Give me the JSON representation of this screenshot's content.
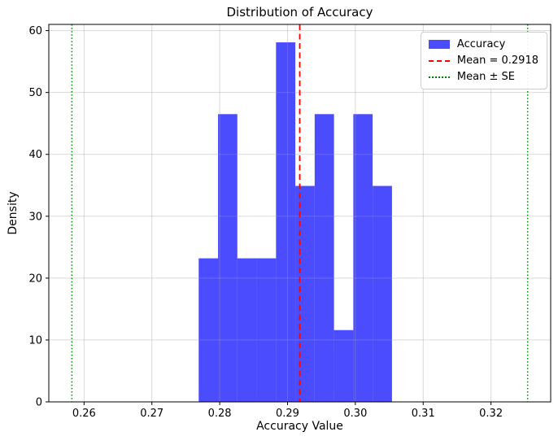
{
  "chart_data": {
    "type": "bar",
    "subtype": "histogram-density",
    "title": "Distribution of Accuracy",
    "xlabel": "Accuracy Value",
    "ylabel": "Density",
    "xlim": [
      0.2548,
      0.3288
    ],
    "ylim": [
      0,
      61
    ],
    "grid": true,
    "xticks": [
      {
        "value": 0.26,
        "label": "0.26"
      },
      {
        "value": 0.27,
        "label": "0.27"
      },
      {
        "value": 0.28,
        "label": "0.28"
      },
      {
        "value": 0.29,
        "label": "0.29"
      },
      {
        "value": 0.3,
        "label": "0.30"
      },
      {
        "value": 0.31,
        "label": "0.31"
      },
      {
        "value": 0.32,
        "label": "0.32"
      }
    ],
    "yticks": [
      {
        "value": 0,
        "label": "0"
      },
      {
        "value": 10,
        "label": "10"
      },
      {
        "value": 20,
        "label": "20"
      },
      {
        "value": 30,
        "label": "30"
      },
      {
        "value": 40,
        "label": "40"
      },
      {
        "value": 50,
        "label": "50"
      },
      {
        "value": 60,
        "label": "60"
      }
    ],
    "histogram": {
      "series_name": "Accuracy",
      "bin_edges": [
        0.2769,
        0.27975,
        0.2826,
        0.28545,
        0.2883,
        0.29115,
        0.294,
        0.29685,
        0.2997,
        0.30255,
        0.3054
      ],
      "densities": [
        23.2,
        46.5,
        23.2,
        23.2,
        58.1,
        34.9,
        46.5,
        11.6,
        46.5,
        34.9
      ],
      "counts": [
        2,
        4,
        2,
        2,
        5,
        3,
        4,
        1,
        4,
        3
      ]
    },
    "mean": 0.2918,
    "se": 0.0336,
    "annotations": {
      "mean_line": {
        "value": 0.2918,
        "style": "dashed",
        "color": "#ff0000"
      },
      "se_lines": {
        "values": [
          0.2582,
          0.3254
        ],
        "style": "dotted",
        "color": "#008000"
      }
    },
    "legend": {
      "position": "upper-right",
      "entries": [
        {
          "label": "Accuracy",
          "type": "patch",
          "color": "rgba(0,0,255,0.7)"
        },
        {
          "label": "Mean = 0.2918",
          "type": "dashed-line",
          "color": "#ff0000"
        },
        {
          "label": "Mean ± SE",
          "type": "dotted-line",
          "color": "#008000"
        }
      ]
    },
    "colors": {
      "bar_fill": "rgba(0,0,255,0.7)",
      "grid": "rgba(160,160,160,0.4)",
      "spine": "#000000",
      "tick": "#000000",
      "text": "#000000"
    }
  }
}
